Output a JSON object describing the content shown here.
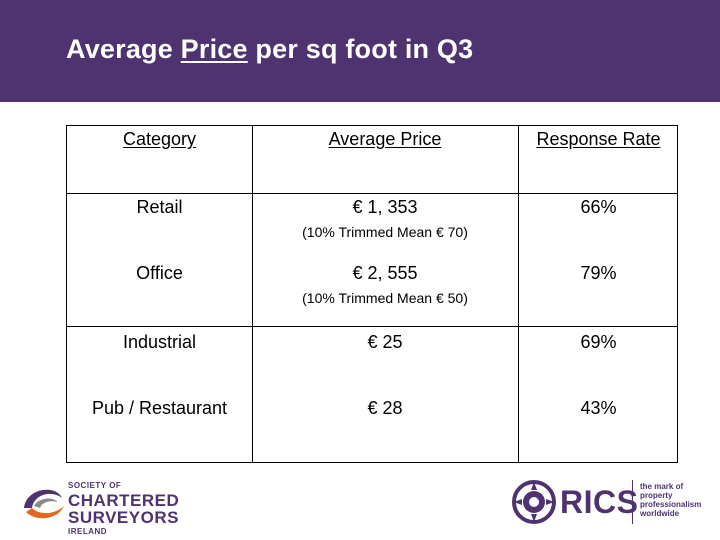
{
  "title": {
    "before": "Average ",
    "underlined": "Price",
    "after": " per sq foot in Q3"
  },
  "table": {
    "headers": [
      "Category",
      "Average Price",
      "Response Rate"
    ],
    "rows": [
      {
        "category": "Retail",
        "price": "€ 1, 353",
        "note": "(10% Trimmed Mean € 70)",
        "rate": "66%"
      },
      {
        "category": "Office",
        "price": "€ 2, 555",
        "note": "(10% Trimmed Mean € 50)",
        "rate": "79%"
      },
      {
        "category": "Industrial",
        "price": "€ 25",
        "note": "",
        "rate": "69%"
      },
      {
        "category": "Pub / Restaurant",
        "price": "€ 28",
        "note": "",
        "rate": "43%"
      }
    ]
  },
  "footer": {
    "scsi": {
      "line1": "SOCIETY OF",
      "line2": "CHARTERED",
      "line3": "SURVEYORS",
      "line4": "IRELAND"
    },
    "rics": {
      "word": "RICS",
      "tagline": "the mark of\nproperty\nprofessionalism\nworldwide"
    }
  },
  "colors": {
    "header_bg": "#4e3370",
    "brand_purple": "#4e3370"
  }
}
